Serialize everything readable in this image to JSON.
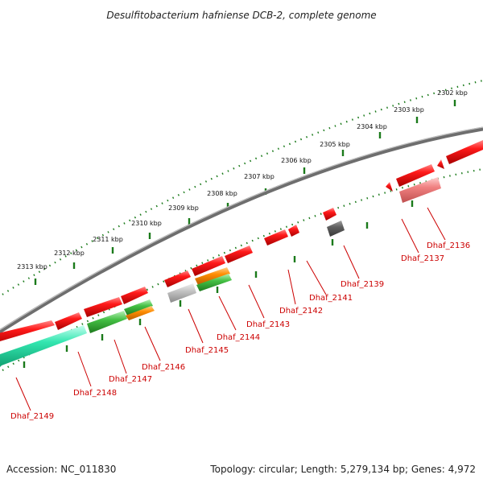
{
  "title": "Desulfitobacterium hafniense DCB-2, complete genome",
  "footer": {
    "accession": "Accession: NC_011830",
    "topology": "Topology: circular; Length: 5,279,134 bp; Genes: 4,972"
  },
  "colors": {
    "backbone": "#7a7a7a",
    "ticks": "#1a7a1a",
    "gene_red": "#e80000",
    "gene_pink": "#f08080",
    "gene_green": "#44c044",
    "gene_teal": "#33e0a8",
    "gene_orange": "#ff8c00",
    "gene_gray": "#c4c4c4",
    "gene_dark": "#606060",
    "label": "#cc0000"
  },
  "kbp_labels": [
    "2302 kbp",
    "2303 kbp",
    "2304 kbp",
    "2305 kbp",
    "2306 kbp",
    "2307 kbp",
    "2308 kbp",
    "2309 kbp",
    "2310 kbp",
    "2311 kbp",
    "2312 kbp",
    "2313 kbp"
  ],
  "gene_labels": [
    "Dhaf_2136",
    "Dhaf_2137",
    "Dhaf_2139",
    "Dhaf_2141",
    "Dhaf_2142",
    "Dhaf_2143",
    "Dhaf_2144",
    "Dhaf_2145",
    "Dhaf_2146",
    "Dhaf_2147",
    "Dhaf_2148",
    "Dhaf_2149"
  ]
}
